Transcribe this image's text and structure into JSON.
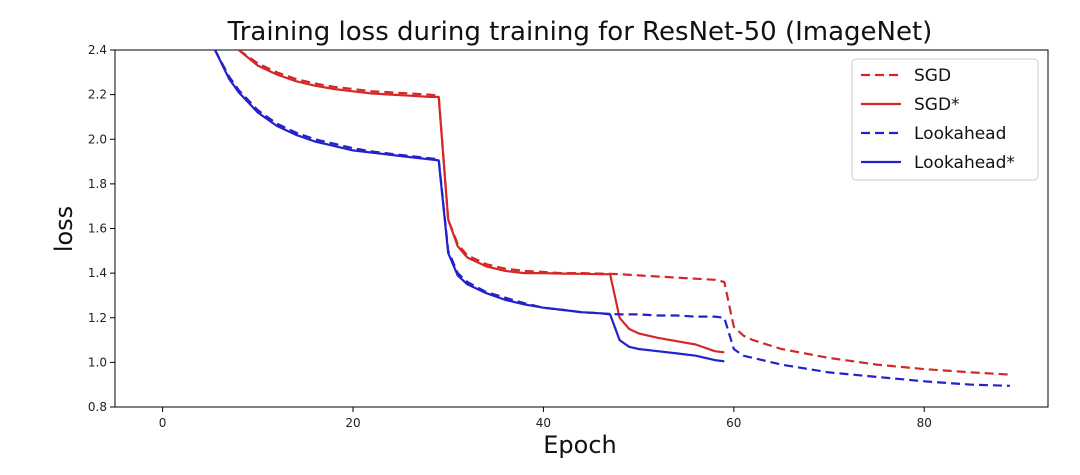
{
  "chart_data": {
    "type": "line",
    "title": "Training loss during training for ResNet-50 (ImageNet)",
    "xlabel": "Epoch",
    "ylabel": "loss",
    "xlim": [
      -5,
      93
    ],
    "ylim": [
      0.8,
      2.4
    ],
    "xticks": [
      0,
      20,
      40,
      60,
      80
    ],
    "yticks": [
      0.8,
      1.0,
      1.2,
      1.4,
      1.6,
      1.8,
      2.0,
      2.2,
      2.4
    ],
    "grid": false,
    "legend_position": "top-right",
    "series": [
      {
        "name": "SGD",
        "color": "#d62728",
        "dash": "dashed",
        "x": [
          8,
          10,
          12,
          14,
          16,
          18,
          20,
          22,
          24,
          26,
          28,
          29,
          30,
          31,
          32,
          34,
          36,
          38,
          40,
          42,
          44,
          46,
          47,
          48,
          50,
          52,
          54,
          56,
          58,
          59,
          60,
          61,
          62,
          65,
          70,
          75,
          80,
          85,
          89
        ],
        "y": [
          2.4,
          2.34,
          2.3,
          2.27,
          2.25,
          2.235,
          2.225,
          2.215,
          2.21,
          2.205,
          2.2,
          2.195,
          1.64,
          1.53,
          1.48,
          1.44,
          1.42,
          1.41,
          1.405,
          1.4,
          1.4,
          1.398,
          1.397,
          1.395,
          1.39,
          1.385,
          1.38,
          1.375,
          1.37,
          1.36,
          1.16,
          1.12,
          1.1,
          1.06,
          1.02,
          0.99,
          0.97,
          0.955,
          0.945
        ]
      },
      {
        "name": "SGD*",
        "color": "#d62728",
        "dash": "solid",
        "x": [
          8,
          10,
          12,
          14,
          16,
          18,
          20,
          22,
          24,
          26,
          28,
          29,
          30,
          31,
          32,
          34,
          36,
          38,
          40,
          42,
          44,
          46,
          47,
          48,
          49,
          50,
          52,
          54,
          56,
          58,
          59
        ],
        "y": [
          2.4,
          2.33,
          2.29,
          2.26,
          2.24,
          2.225,
          2.215,
          2.205,
          2.2,
          2.195,
          2.19,
          2.19,
          1.64,
          1.52,
          1.47,
          1.43,
          1.41,
          1.4,
          1.4,
          1.398,
          1.397,
          1.395,
          1.395,
          1.2,
          1.15,
          1.13,
          1.11,
          1.095,
          1.08,
          1.05,
          1.045
        ]
      },
      {
        "name": "Lookahead",
        "color": "#2222cc",
        "dash": "dashed",
        "x": [
          5.5,
          7,
          8,
          10,
          12,
          14,
          16,
          18,
          20,
          22,
          24,
          26,
          28,
          29,
          30,
          31,
          32,
          34,
          36,
          38,
          40,
          42,
          44,
          46,
          48,
          50,
          52,
          54,
          56,
          58,
          59,
          60,
          61,
          62,
          65,
          70,
          75,
          80,
          85,
          89
        ],
        "y": [
          2.4,
          2.28,
          2.22,
          2.13,
          2.07,
          2.03,
          2.0,
          1.98,
          1.96,
          1.945,
          1.935,
          1.925,
          1.915,
          1.91,
          1.5,
          1.4,
          1.36,
          1.315,
          1.29,
          1.265,
          1.245,
          1.235,
          1.225,
          1.22,
          1.215,
          1.215,
          1.21,
          1.21,
          1.205,
          1.205,
          1.2,
          1.06,
          1.03,
          1.02,
          0.99,
          0.955,
          0.935,
          0.915,
          0.9,
          0.895
        ]
      },
      {
        "name": "Lookahead*",
        "color": "#2222cc",
        "dash": "solid",
        "x": [
          5.5,
          7,
          8,
          10,
          12,
          14,
          16,
          18,
          20,
          22,
          24,
          26,
          28,
          29,
          30,
          31,
          32,
          34,
          36,
          38,
          40,
          42,
          44,
          46,
          47,
          48,
          49,
          50,
          52,
          54,
          56,
          58,
          59
        ],
        "y": [
          2.4,
          2.27,
          2.21,
          2.12,
          2.06,
          2.02,
          1.99,
          1.97,
          1.95,
          1.94,
          1.93,
          1.92,
          1.91,
          1.905,
          1.49,
          1.39,
          1.35,
          1.31,
          1.28,
          1.26,
          1.245,
          1.235,
          1.225,
          1.22,
          1.215,
          1.1,
          1.07,
          1.06,
          1.05,
          1.04,
          1.03,
          1.01,
          1.005
        ]
      }
    ]
  }
}
